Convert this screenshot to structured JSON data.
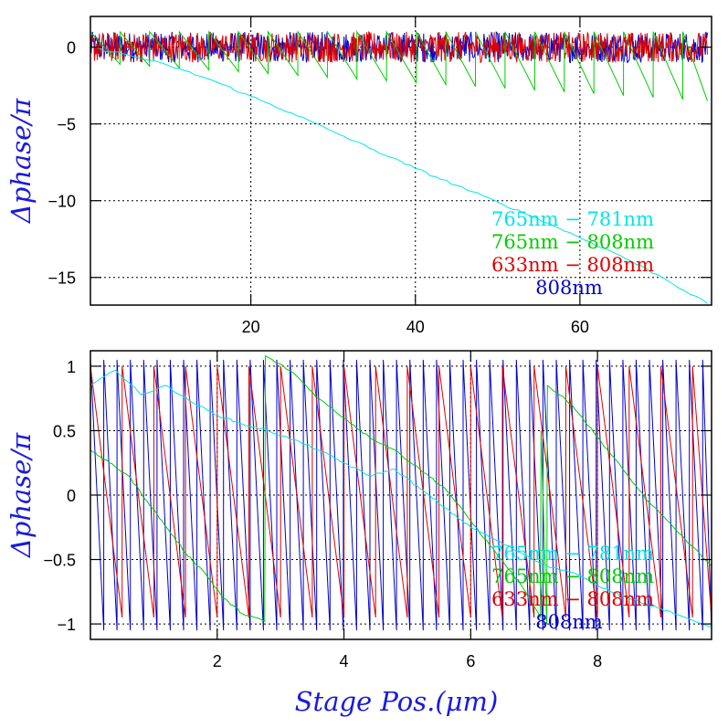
{
  "figure": {
    "xlabel": "Stage Pos.(μm)"
  },
  "chart_data": [
    {
      "type": "line",
      "ylabel": "Δphase/π",
      "xlim": [
        0.5,
        76
      ],
      "ylim": [
        -16.8,
        2.0
      ],
      "x_ticks": [
        20,
        40,
        60
      ],
      "y_ticks": [
        0,
        -5,
        -10,
        -15
      ],
      "x_tick_labels": [
        "20",
        "40",
        "60"
      ],
      "y_tick_labels": [
        "0",
        "−5",
        "−10",
        "−15"
      ],
      "grid": true,
      "legend": [
        {
          "label": "765nm − 781nm",
          "color": "#00e5e5"
        },
        {
          "label": "765nm − 808nm",
          "color": "#00cc00"
        },
        {
          "label": "633nm − 808nm",
          "color": "#dd0000"
        },
        {
          "label": "808nm",
          "color": "#0000cc"
        }
      ],
      "series": [
        {
          "name": "765nm − 781nm",
          "color": "#00e5e5",
          "kind": "line",
          "x": [
            0.5,
            5,
            10,
            15,
            20,
            25,
            30,
            35,
            40,
            45,
            50,
            55,
            60,
            65,
            70,
            75.5
          ],
          "y": [
            0.0,
            -0.5,
            -1.2,
            -2.1,
            -3.2,
            -4.3,
            -5.5,
            -6.7,
            -7.9,
            -9.0,
            -10.1,
            -11.2,
            -12.4,
            -13.6,
            -15.0,
            -16.7
          ]
        },
        {
          "name": "765nm − 808nm",
          "color": "#00cc00",
          "kind": "sawtooth",
          "x_start": 0.5,
          "x_end": 75.5,
          "period": 3.6,
          "min": -1.0,
          "max": 1.0,
          "drift_end": -2.5
        },
        {
          "name": "633nm − 808nm",
          "color": "#dd0000",
          "kind": "noise",
          "x_start": 0.5,
          "x_end": 75.5,
          "min": -1.0,
          "max": 1.0
        },
        {
          "name": "808nm",
          "color": "#0000cc",
          "kind": "noise",
          "x_start": 0.5,
          "x_end": 75.5,
          "min": -1.0,
          "max": 1.0
        }
      ]
    },
    {
      "type": "line",
      "ylabel": "Δphase/π",
      "xlim": [
        0.0,
        9.8
      ],
      "ylim": [
        -1.12,
        1.12
      ],
      "x_ticks": [
        2,
        4,
        6,
        8
      ],
      "y_ticks": [
        1,
        0.5,
        0,
        -0.5,
        -1
      ],
      "x_tick_labels": [
        "2",
        "4",
        "6",
        "8"
      ],
      "y_tick_labels": [
        "1",
        "0.5",
        "0",
        "−0.5",
        "−1"
      ],
      "grid": true,
      "legend": [
        {
          "label": "765nm − 781nm",
          "color": "#00e5e5"
        },
        {
          "label": "765nm − 808nm",
          "color": "#00cc00"
        },
        {
          "label": "633nm − 808nm",
          "color": "#dd0000"
        },
        {
          "label": "808nm",
          "color": "#0000cc"
        }
      ],
      "series": [
        {
          "name": "765nm − 781nm",
          "color": "#00e5e5",
          "kind": "line",
          "x": [
            0.0,
            0.4,
            0.8,
            1.2,
            1.6,
            2.0,
            2.4,
            2.8,
            3.2,
            3.6,
            4.0,
            4.4,
            4.8,
            5.2,
            5.6,
            6.0,
            6.4,
            6.8,
            7.2,
            7.6,
            8.0,
            8.4,
            8.8,
            9.2,
            9.8
          ],
          "y": [
            0.85,
            0.97,
            0.78,
            0.85,
            0.72,
            0.62,
            0.55,
            0.5,
            0.43,
            0.35,
            0.25,
            0.15,
            0.2,
            0.05,
            -0.1,
            -0.25,
            -0.35,
            -0.45,
            -0.55,
            -0.6,
            -0.7,
            -0.78,
            -0.85,
            -0.92,
            -1.02
          ]
        },
        {
          "name": "765nm − 808nm",
          "color": "#00cc00",
          "kind": "line",
          "x": [
            0.0,
            0.3,
            0.6,
            0.9,
            1.2,
            1.5,
            1.8,
            2.1,
            2.4,
            2.75,
            2.76,
            3.2,
            3.6,
            4.0,
            4.4,
            4.8,
            5.2,
            5.6,
            6.0,
            6.4,
            6.8,
            7.1,
            7.11,
            7.2,
            7.21,
            7.6,
            8.0,
            8.4,
            8.8,
            9.2,
            9.8
          ],
          "y": [
            0.35,
            0.25,
            0.15,
            -0.05,
            -0.25,
            -0.45,
            -0.6,
            -0.8,
            -0.92,
            -0.98,
            1.08,
            0.95,
            0.75,
            0.6,
            0.45,
            0.35,
            0.2,
            0.05,
            -0.2,
            -0.45,
            -0.7,
            -0.95,
            0.5,
            -1.0,
            0.85,
            0.7,
            0.45,
            0.2,
            -0.05,
            -0.25,
            -0.55
          ]
        },
        {
          "name": "633nm − 808nm",
          "color": "#dd0000",
          "kind": "sawtooth",
          "x_start": 0.0,
          "x_end": 9.8,
          "period": 0.5,
          "min": -0.95,
          "max": 1.0,
          "drift_end": 0.0
        },
        {
          "name": "808nm",
          "color": "#0000cc",
          "kind": "sawtooth",
          "x_start": 0.0,
          "x_end": 9.8,
          "period": 0.21,
          "min": -1.05,
          "max": 1.05,
          "drift_end": 0.0
        }
      ]
    }
  ]
}
